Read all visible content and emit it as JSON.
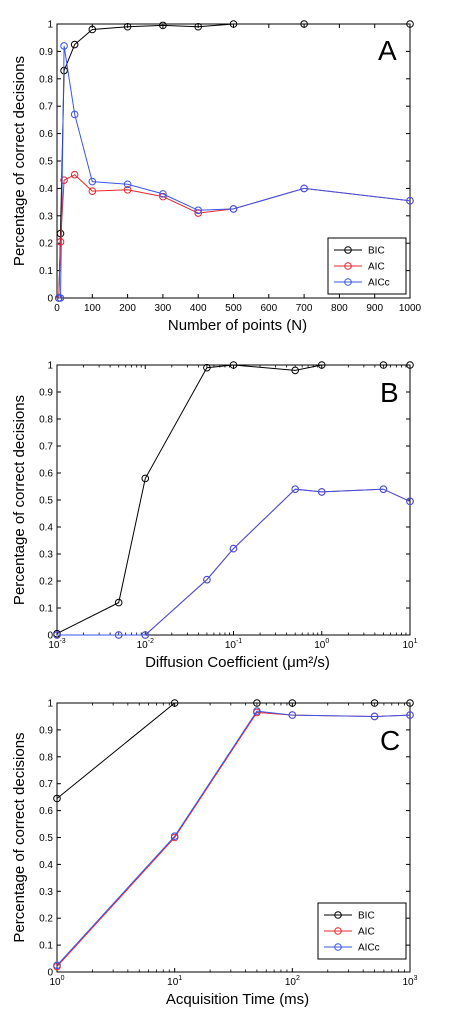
{
  "chart_data": [
    {
      "type": "line",
      "panel_label": "A",
      "xlabel": "Number of points (N)",
      "ylabel": "Percentage of correct decisions",
      "xscale": "linear",
      "xlim": [
        0,
        1000
      ],
      "ylim": [
        0,
        1
      ],
      "xticks": [
        0,
        100,
        200,
        300,
        400,
        500,
        600,
        700,
        800,
        900,
        1000
      ],
      "yticks": [
        0,
        0.1,
        0.2,
        0.3,
        0.4,
        0.5,
        0.6,
        0.7,
        0.8,
        0.9,
        1
      ],
      "legend": "bottom-right",
      "series": [
        {
          "name": "BIC",
          "color": "#000000",
          "x": [
            5,
            10,
            20,
            50,
            100,
            200,
            300,
            400,
            500,
            700,
            1000
          ],
          "y": [
            0,
            0.235,
            0.83,
            0.925,
            0.98,
            0.99,
            0.995,
            0.99,
            1.0,
            1.0,
            1.0
          ]
        },
        {
          "name": "AIC",
          "color": "#e8262b",
          "x": [
            5,
            10,
            20,
            50,
            100,
            200,
            300,
            400,
            500,
            700,
            1000
          ],
          "y": [
            0,
            0.205,
            0.43,
            0.45,
            0.39,
            0.395,
            0.37,
            0.31,
            0.325,
            0.4,
            0.355
          ]
        },
        {
          "name": "AICc",
          "color": "#3a55e6",
          "x": [
            5,
            10,
            20,
            50,
            100,
            200,
            300,
            400,
            500,
            700,
            1000
          ],
          "y": [
            0,
            0,
            0.92,
            0.67,
            0.425,
            0.415,
            0.38,
            0.32,
            0.325,
            0.4,
            0.355
          ]
        }
      ]
    },
    {
      "type": "line",
      "panel_label": "B",
      "xlabel": "Diffusion Coefficient   (μm²/s)",
      "ylabel": "Percentage of correct decisions",
      "xscale": "log",
      "xlim": [
        0.001,
        10
      ],
      "ylim": [
        0,
        1
      ],
      "xticks": [
        0.001,
        0.01,
        0.1,
        1,
        10
      ],
      "xtick_labels": [
        [
          "10",
          "-3"
        ],
        [
          "10",
          "-2"
        ],
        [
          "10",
          "-1"
        ],
        [
          "10",
          "0"
        ],
        [
          "10",
          "1"
        ]
      ],
      "yticks": [
        0,
        0.1,
        0.2,
        0.3,
        0.4,
        0.5,
        0.6,
        0.7,
        0.8,
        0.9,
        1
      ],
      "series": [
        {
          "name": "BIC",
          "color": "#000000",
          "x": [
            0.001,
            0.005,
            0.01,
            0.05,
            0.1,
            0.5,
            1,
            5,
            10
          ],
          "y": [
            0.005,
            0.12,
            0.58,
            0.99,
            1.0,
            0.98,
            1.0,
            1.0,
            1.0
          ]
        },
        {
          "name": "AIC",
          "color": "#e8262b",
          "x": [
            0.001,
            0.005,
            0.01,
            0.05,
            0.1,
            0.5,
            1,
            5,
            10
          ],
          "y": [
            0,
            0,
            0,
            0.205,
            0.32,
            0.54,
            0.53,
            0.54,
            0.495
          ]
        },
        {
          "name": "AICc",
          "color": "#3a55e6",
          "x": [
            0.001,
            0.005,
            0.01,
            0.05,
            0.1,
            0.5,
            1,
            5,
            10
          ],
          "y": [
            0,
            0,
            0,
            0.205,
            0.32,
            0.54,
            0.53,
            0.54,
            0.495
          ]
        }
      ]
    },
    {
      "type": "line",
      "panel_label": "C",
      "xlabel": "Acquisition Time (ms)",
      "ylabel": "Percentage of correct decisions",
      "xscale": "log",
      "xlim": [
        1,
        1000
      ],
      "ylim": [
        0,
        1
      ],
      "xticks": [
        1,
        10,
        100,
        1000
      ],
      "xtick_labels": [
        [
          "10",
          "0"
        ],
        [
          "10",
          "1"
        ],
        [
          "10",
          "2"
        ],
        [
          "10",
          "3"
        ]
      ],
      "yticks": [
        0,
        0.1,
        0.2,
        0.3,
        0.4,
        0.5,
        0.6,
        0.7,
        0.8,
        0.9,
        1
      ],
      "legend": "bottom-right",
      "series": [
        {
          "name": "BIC",
          "color": "#000000",
          "x": [
            1,
            10,
            50,
            100,
            500,
            1000
          ],
          "y": [
            0.645,
            1.0,
            1.0,
            1.0,
            1.0,
            1.0
          ]
        },
        {
          "name": "AIC",
          "color": "#e8262b",
          "x": [
            1,
            10,
            50,
            100,
            500,
            1000
          ],
          "y": [
            0.02,
            0.5,
            0.965,
            0.955,
            0.95,
            0.955
          ]
        },
        {
          "name": "AICc",
          "color": "#3a55e6",
          "x": [
            1,
            10,
            50,
            100,
            500,
            1000
          ],
          "y": [
            0.025,
            0.505,
            0.97,
            0.955,
            0.95,
            0.955
          ]
        }
      ]
    }
  ]
}
